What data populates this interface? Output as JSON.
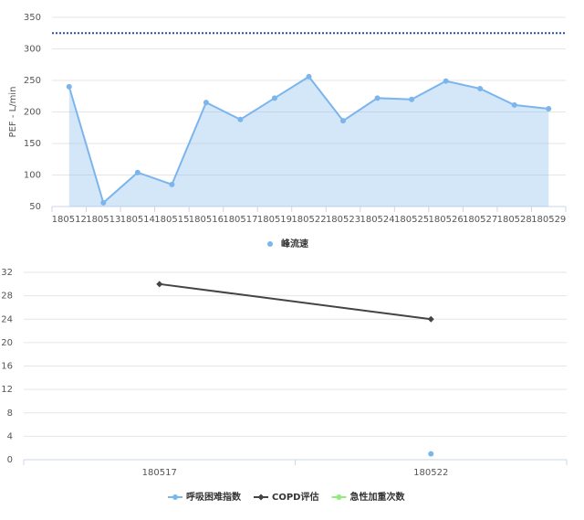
{
  "chart_data": [
    {
      "type": "area",
      "y_label": "PEF - L/min",
      "categories": [
        "180512",
        "180513",
        "180514",
        "180515",
        "180516",
        "180517",
        "180519",
        "180522",
        "180523",
        "180524",
        "180525",
        "180526",
        "180527",
        "180528",
        "180529"
      ],
      "series": [
        {
          "name": "峰流速",
          "color": "#7cb5ec",
          "values": [
            240,
            56,
            104,
            85,
            215,
            188,
            222,
            256,
            186,
            222,
            220,
            249,
            237,
            211,
            205
          ]
        }
      ],
      "reference_line": 325,
      "reference_color": "#2b4fa8",
      "ylim": [
        50,
        350
      ],
      "yticks": [
        50,
        100,
        150,
        200,
        250,
        300,
        350
      ],
      "grid": true
    },
    {
      "type": "line",
      "categories": [
        "180517",
        "180522"
      ],
      "series": [
        {
          "name": "呼吸困难指数",
          "color": "#7cb5ec",
          "values": [
            null,
            1
          ]
        },
        {
          "name": "COPD评估",
          "color": "#434348",
          "values": [
            30,
            24
          ]
        },
        {
          "name": "急性加重次数",
          "color": "#90ed7d",
          "values": [
            null,
            null
          ]
        }
      ],
      "ylim": [
        0,
        32
      ],
      "yticks": [
        0,
        4,
        8,
        12,
        16,
        20,
        24,
        28,
        32
      ],
      "grid": true
    }
  ]
}
